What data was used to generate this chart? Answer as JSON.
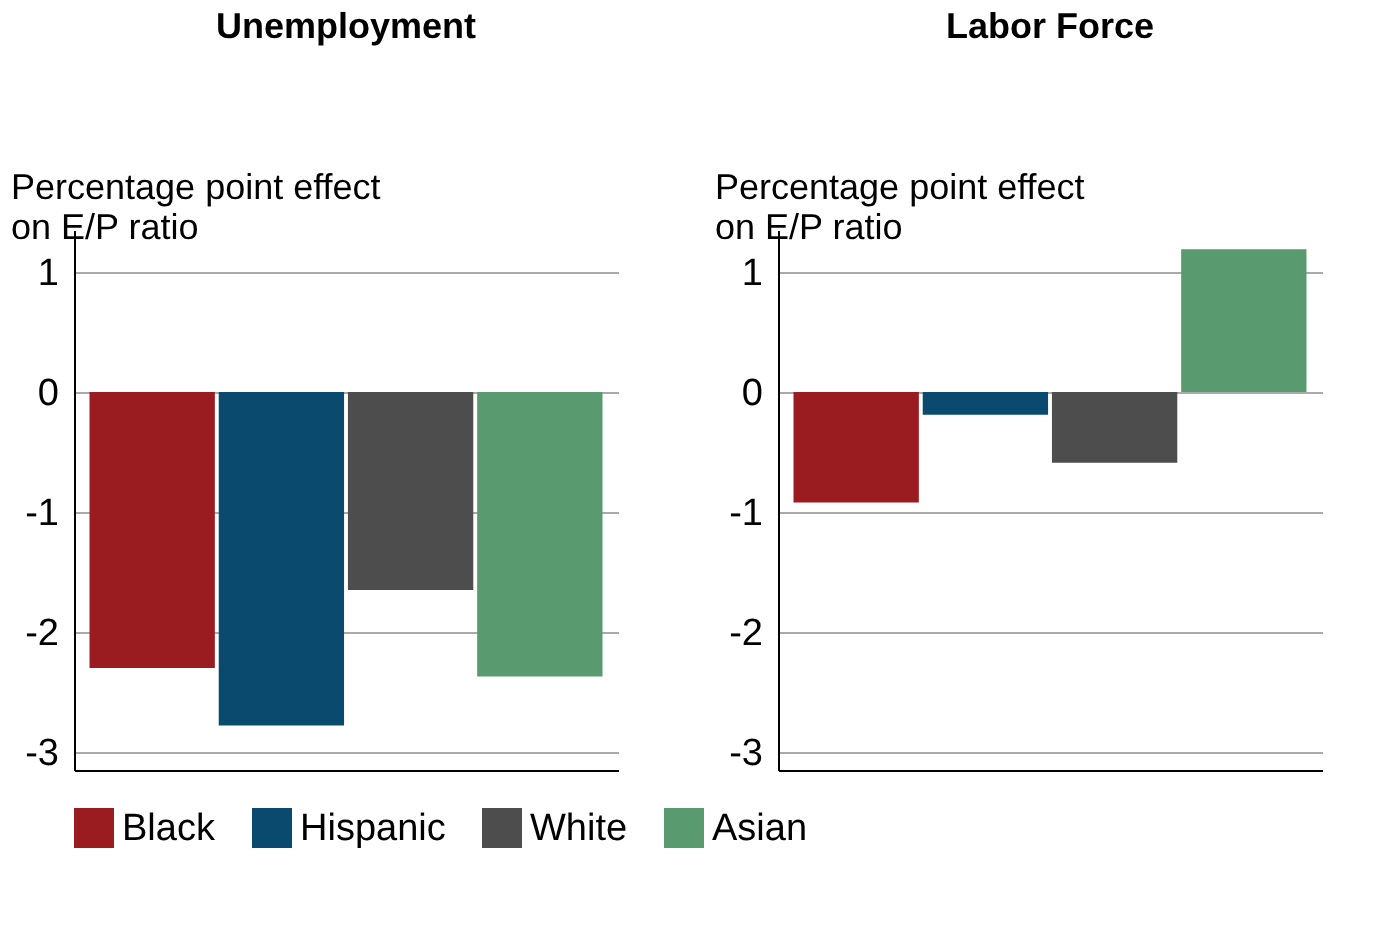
{
  "chart_data": [
    {
      "type": "bar",
      "title": "Unemployment",
      "ylabel": "Percentage point effect on E/P ratio",
      "categories": [
        null
      ],
      "series": [
        {
          "name": "Black",
          "color": "#9b1c20",
          "values": [
            -2.3
          ]
        },
        {
          "name": "Hispanic",
          "color": "#0b4a6f",
          "values": [
            -2.78
          ]
        },
        {
          "name": "White",
          "color": "#4d4d4d",
          "values": [
            -1.65
          ]
        },
        {
          "name": "Asian",
          "color": "#5a9a6f",
          "values": [
            -2.37
          ]
        }
      ],
      "ylim": [
        -3.15,
        1.35
      ],
      "yticks": [
        -3,
        -2,
        -1,
        0,
        1
      ],
      "grid": "y",
      "legend": "bottom"
    },
    {
      "type": "bar",
      "title": "Labor Force",
      "ylabel": "Percentage point effect on E/P ratio",
      "categories": [
        null
      ],
      "series": [
        {
          "name": "Black",
          "color": "#9b1c20",
          "values": [
            -0.92
          ]
        },
        {
          "name": "Hispanic",
          "color": "#0b4a6f",
          "values": [
            -0.19
          ]
        },
        {
          "name": "White",
          "color": "#4d4d4d",
          "values": [
            -0.59
          ]
        },
        {
          "name": "Asian",
          "color": "#5a9a6f",
          "values": [
            1.19
          ]
        }
      ],
      "ylim": [
        -3.15,
        1.35
      ],
      "yticks": [
        -3,
        -2,
        -1,
        0,
        1
      ],
      "grid": "y",
      "legend": "bottom"
    }
  ]
}
